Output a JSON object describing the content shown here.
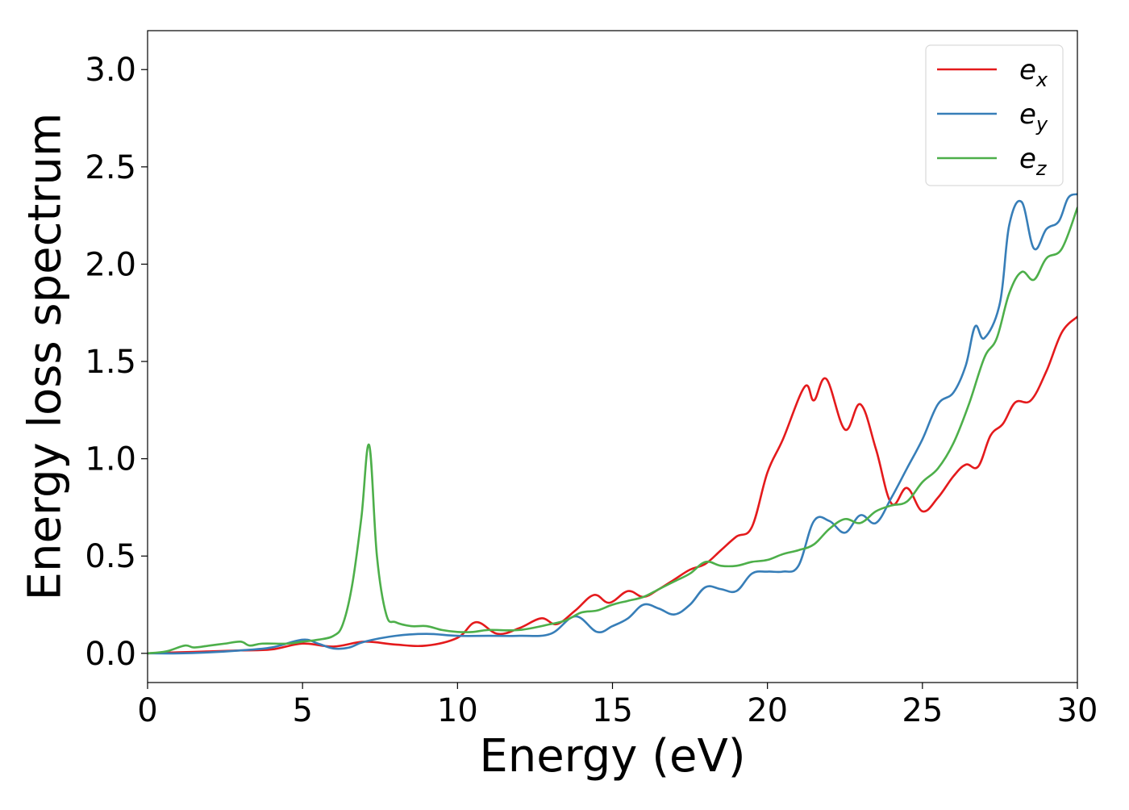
{
  "chart_data": {
    "type": "line",
    "title": "",
    "xlabel": "Energy (eV)",
    "ylabel": "Energy loss spectrum",
    "xlim": [
      0,
      30
    ],
    "ylim": [
      -0.15,
      3.2
    ],
    "xticks": [
      "0",
      "5",
      "10",
      "15",
      "20",
      "25",
      "30"
    ],
    "yticks": [
      "0.0",
      "0.5",
      "1.0",
      "1.5",
      "2.0",
      "2.5",
      "3.0"
    ],
    "grid": false,
    "legend_position": "top-right",
    "series": [
      {
        "name": "e_x",
        "legend_base": "e",
        "legend_sub": "x",
        "color": "#e41a1c",
        "x": [
          0,
          1,
          2,
          3,
          4,
          5,
          6,
          7,
          8,
          9,
          10,
          10.6,
          11.3,
          12,
          12.7,
          13.2,
          13.8,
          14.4,
          14.9,
          15.5,
          16,
          16.5,
          17,
          17.5,
          18,
          18.5,
          19,
          19.5,
          20,
          20.5,
          21.2,
          21.5,
          21.9,
          22.5,
          23,
          23.5,
          24,
          24.5,
          25,
          25.5,
          26,
          26.4,
          26.8,
          27.2,
          27.6,
          28,
          28.5,
          29,
          29.5,
          30
        ],
        "values": [
          0,
          0.005,
          0.01,
          0.015,
          0.02,
          0.05,
          0.035,
          0.06,
          0.045,
          0.04,
          0.08,
          0.16,
          0.1,
          0.13,
          0.18,
          0.15,
          0.22,
          0.3,
          0.26,
          0.32,
          0.29,
          0.33,
          0.38,
          0.43,
          0.46,
          0.53,
          0.6,
          0.65,
          0.93,
          1.1,
          1.37,
          1.3,
          1.41,
          1.15,
          1.28,
          1.05,
          0.77,
          0.85,
          0.73,
          0.8,
          0.91,
          0.97,
          0.96,
          1.12,
          1.18,
          1.29,
          1.3,
          1.45,
          1.65,
          1.73
        ]
      },
      {
        "name": "e_y",
        "legend_base": "e",
        "legend_sub": "y",
        "color": "#377eb8",
        "x": [
          0,
          1,
          2,
          3,
          4,
          5,
          5.5,
          6,
          6.5,
          7,
          8,
          9,
          10,
          11,
          12,
          13,
          13.8,
          14.5,
          15,
          15.5,
          16,
          16.5,
          17,
          17.5,
          18,
          18.5,
          19,
          19.5,
          20,
          20.5,
          21,
          21.5,
          22,
          22.5,
          23,
          23.5,
          24,
          24.5,
          25,
          25.5,
          26,
          26.4,
          26.7,
          27,
          27.5,
          27.8,
          28.2,
          28.6,
          29,
          29.4,
          29.7,
          30
        ],
        "values": [
          0,
          0,
          0.005,
          0.015,
          0.03,
          0.07,
          0.05,
          0.025,
          0.03,
          0.06,
          0.09,
          0.1,
          0.09,
          0.09,
          0.09,
          0.1,
          0.19,
          0.11,
          0.14,
          0.18,
          0.25,
          0.23,
          0.2,
          0.25,
          0.34,
          0.33,
          0.32,
          0.41,
          0.42,
          0.42,
          0.45,
          0.68,
          0.68,
          0.62,
          0.71,
          0.67,
          0.8,
          0.95,
          1.1,
          1.28,
          1.34,
          1.48,
          1.68,
          1.62,
          1.8,
          2.2,
          2.32,
          2.08,
          2.18,
          2.22,
          2.34,
          2.36
        ]
      },
      {
        "name": "e_z",
        "legend_base": "e",
        "legend_sub": "z",
        "color": "#4daf4a",
        "x": [
          0,
          0.6,
          1.2,
          1.5,
          2,
          2.5,
          3,
          3.3,
          3.7,
          4.5,
          5,
          5.5,
          6,
          6.3,
          6.6,
          6.9,
          7.15,
          7.4,
          7.7,
          8,
          8.5,
          9,
          9.5,
          10,
          10.5,
          11,
          12,
          13,
          13.5,
          14,
          14.5,
          15,
          15.5,
          16,
          16.5,
          17,
          17.5,
          18,
          18.5,
          19,
          19.5,
          20,
          20.5,
          21,
          21.5,
          22,
          22.5,
          23,
          23.5,
          24,
          24.5,
          25,
          25.5,
          26,
          26.5,
          27,
          27.4,
          27.8,
          28.2,
          28.6,
          29,
          29.5,
          30
        ],
        "values": [
          0,
          0.01,
          0.04,
          0.03,
          0.04,
          0.05,
          0.06,
          0.04,
          0.05,
          0.05,
          0.06,
          0.07,
          0.09,
          0.15,
          0.35,
          0.7,
          1.07,
          0.5,
          0.2,
          0.16,
          0.14,
          0.14,
          0.12,
          0.11,
          0.11,
          0.12,
          0.12,
          0.15,
          0.17,
          0.21,
          0.22,
          0.25,
          0.27,
          0.29,
          0.33,
          0.37,
          0.41,
          0.47,
          0.45,
          0.45,
          0.47,
          0.48,
          0.51,
          0.53,
          0.56,
          0.64,
          0.69,
          0.67,
          0.73,
          0.76,
          0.78,
          0.88,
          0.95,
          1.08,
          1.28,
          1.52,
          1.62,
          1.85,
          1.96,
          1.92,
          2.03,
          2.08,
          2.29
        ]
      }
    ]
  }
}
